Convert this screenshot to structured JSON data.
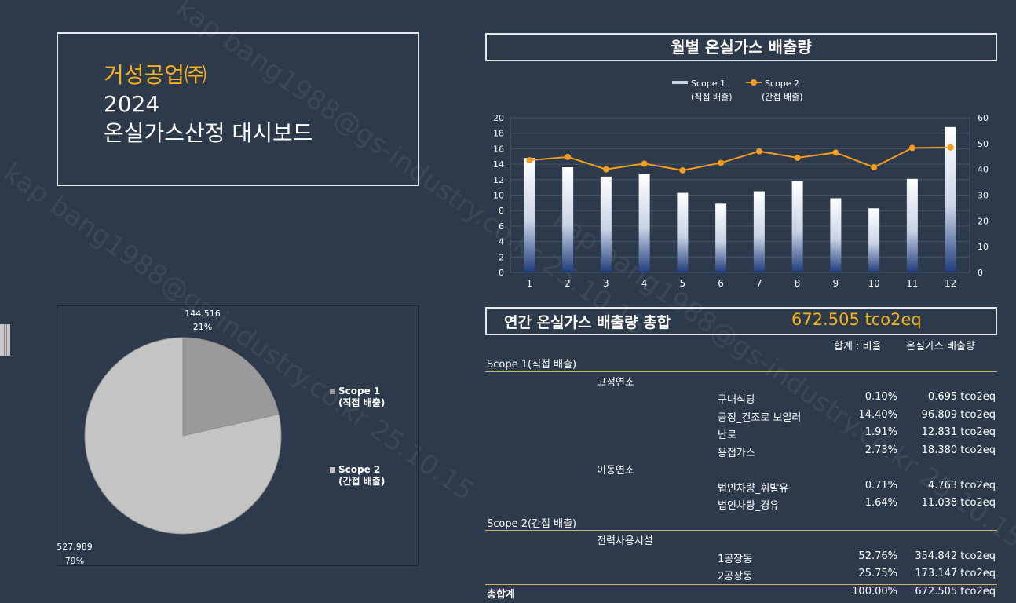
{
  "header": {
    "company": "거성공업㈜",
    "year": "2024",
    "dashboard_title": "온실가스산정 대시보드"
  },
  "monthly_chart": {
    "title": "월별 온실가스 배출량"
  },
  "annual": {
    "label": "연간 온실가스 배출량 총합",
    "total": "672.505 tco2eq"
  },
  "table": {
    "col_ratio": "합계 : 비율",
    "col_emission": "온실가스 배출량",
    "rows": [
      {
        "kind": "scope",
        "name": "Scope 1(직접 배출)"
      },
      {
        "kind": "group",
        "name": "고정연소"
      },
      {
        "kind": "item",
        "name": "구내식당",
        "ratio": "0.10%",
        "value": "0.695 tco2eq"
      },
      {
        "kind": "item",
        "name": "공정_건조로 보일러",
        "ratio": "14.40%",
        "value": "96.809 tco2eq"
      },
      {
        "kind": "item",
        "name": "난로",
        "ratio": "1.91%",
        "value": "12.831 tco2eq"
      },
      {
        "kind": "item",
        "name": "용접가스",
        "ratio": "2.73%",
        "value": "18.380 tco2eq"
      },
      {
        "kind": "group",
        "name": "이동연소"
      },
      {
        "kind": "item",
        "name": "법인차량_휘발유",
        "ratio": "0.71%",
        "value": "4.763 tco2eq"
      },
      {
        "kind": "item",
        "name": "법인차량_경유",
        "ratio": "1.64%",
        "value": "11.038 tco2eq"
      },
      {
        "kind": "scope",
        "name": "Scope 2(간접 배출)"
      },
      {
        "kind": "group",
        "name": "전력사용시설"
      },
      {
        "kind": "item",
        "name": "1공장동",
        "ratio": "52.76%",
        "value": "354.842 tco2eq"
      },
      {
        "kind": "item",
        "name": "2공장동",
        "ratio": "25.75%",
        "value": "173.147 tco2eq"
      },
      {
        "kind": "total",
        "name": "총합계",
        "ratio": "100.00%",
        "value": "672.505 tco2eq"
      }
    ]
  },
  "watermark": "kap bang1988@gs-industry.co.kr 25.10.15",
  "chart_data": [
    {
      "type": "bar",
      "title": "월별 온실가스 배출량",
      "categories": [
        "1",
        "2",
        "3",
        "4",
        "5",
        "6",
        "7",
        "8",
        "9",
        "10",
        "11",
        "12"
      ],
      "series": [
        {
          "name": "Scope 1\n(직접 배출)",
          "type": "bar",
          "axis": "left",
          "values": [
            14.8,
            13.6,
            12.4,
            12.7,
            10.3,
            8.9,
            10.5,
            11.8,
            9.6,
            8.3,
            12.1,
            18.8
          ]
        },
        {
          "name": "Scope 2\n(간접 배출)",
          "type": "line",
          "axis": "right",
          "color": "#f39c1e",
          "values": [
            43.5,
            44.8,
            40.0,
            42.2,
            39.6,
            42.5,
            47.0,
            44.5,
            46.5,
            40.8,
            48.3,
            48.5
          ]
        }
      ],
      "y_left": {
        "min": 0,
        "max": 20,
        "ticks": [
          0,
          2,
          4,
          6,
          8,
          10,
          12,
          14,
          16,
          18,
          20
        ]
      },
      "y_right": {
        "min": 0,
        "max": 60,
        "ticks": [
          0,
          10,
          20,
          30,
          40,
          50,
          60
        ]
      },
      "legend": "top-center",
      "grid": true
    },
    {
      "type": "pie",
      "slices": [
        {
          "label": "Scope 1\n(직접 배출)",
          "value": 144.516,
          "percent": "21%",
          "value_label": "144.516",
          "color": "#9a9a9a"
        },
        {
          "label": "Scope 2\n(간접 배출)",
          "value": 527.989,
          "percent": "79%",
          "value_label": "527.989",
          "color": "#c4c4c4"
        }
      ],
      "legend": "right"
    }
  ]
}
